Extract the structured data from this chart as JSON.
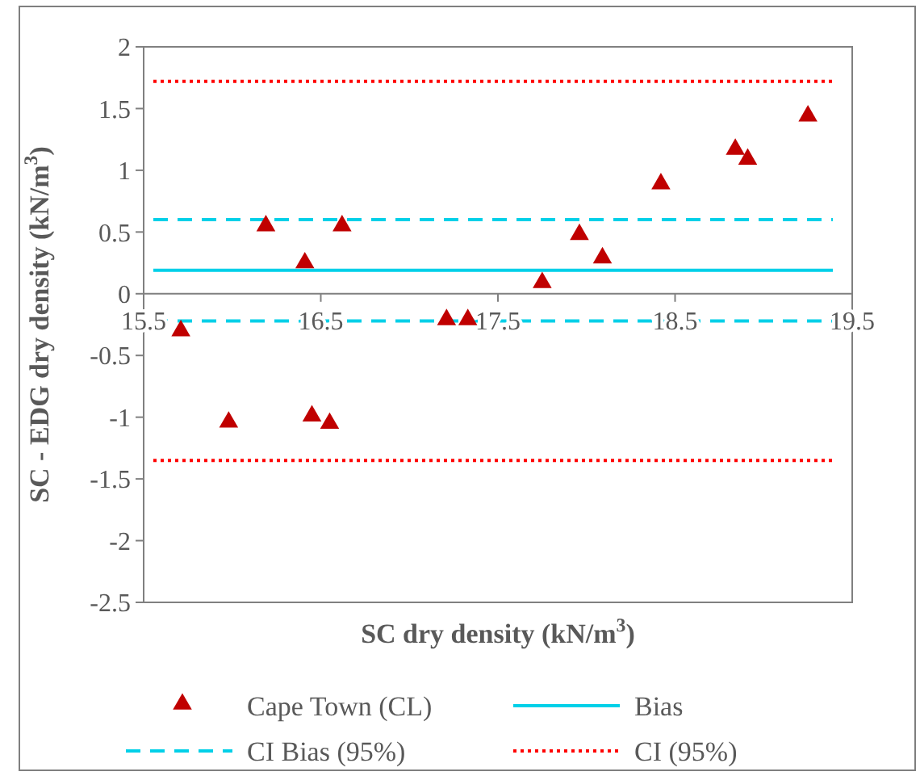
{
  "chart_data": {
    "type": "scatter",
    "xlabel": "SC dry density (kN/m$^{3}$)",
    "ylabel": "SC - EDG dry density (kN/m$^{3}$)",
    "xlim": [
      15.5,
      19.5
    ],
    "xticks": [
      15.5,
      16.5,
      17.5,
      18.5,
      19.5
    ],
    "ylim": [
      -2.5,
      2
    ],
    "yticks": [
      -2.5,
      -2,
      -1.5,
      -1,
      -0.5,
      0,
      0.5,
      1,
      1.5,
      2
    ],
    "grid": false,
    "legend": "bottom",
    "marker": "triangle",
    "series": [
      {
        "name": "Cape Town (CL)",
        "color": "#c00000",
        "x": [
          15.71,
          15.98,
          16.19,
          16.41,
          16.45,
          16.55,
          16.62,
          17.21,
          17.33,
          17.75,
          17.96,
          18.09,
          18.42,
          18.84,
          18.91,
          19.25
        ],
        "values": [
          -0.3,
          -1.04,
          0.55,
          0.25,
          -0.99,
          -1.05,
          0.55,
          -0.21,
          -0.21,
          0.09,
          0.48,
          0.29,
          0.89,
          1.17,
          1.09,
          1.44
        ]
      }
    ],
    "ref_lines": [
      {
        "axis": "y",
        "value": 0.19,
        "label": "Bias",
        "color": "#00d0e8",
        "line_style": "solid"
      },
      {
        "axis": "y",
        "value": 0.6,
        "label": "CI Bias (95%)",
        "color": "#00d0e8",
        "line_style": "dashed"
      },
      {
        "axis": "y",
        "value": -0.22,
        "color": "#00d0e8",
        "line_style": "dashed"
      },
      {
        "axis": "y",
        "value": 1.72,
        "label": "CI (95%)",
        "color": "#ff0000",
        "line_style": "dotted"
      },
      {
        "axis": "y",
        "value": -1.35,
        "color": "#ff0000",
        "line_style": "dotted"
      }
    ]
  }
}
